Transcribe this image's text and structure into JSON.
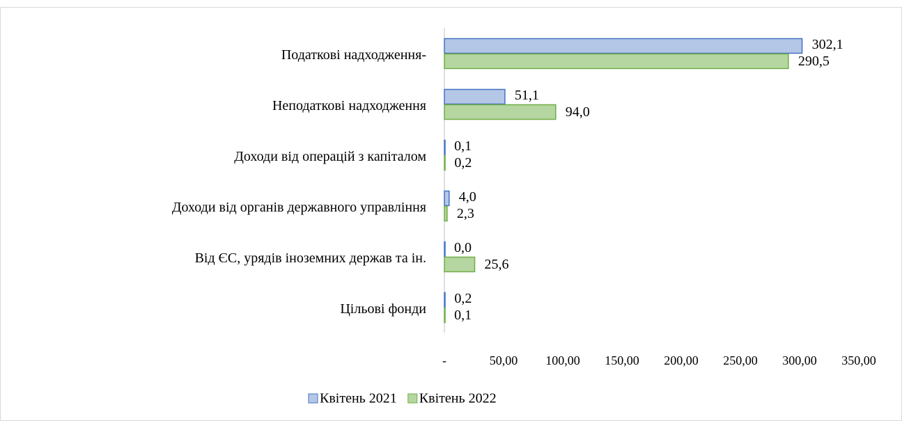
{
  "chart_data": {
    "type": "hbar",
    "categories": [
      "Податкові надходження-",
      "Неподаткові надходження",
      "Доходи від операцій з капіталом",
      "Доходи від органів державного управління",
      "Від ЄС, урядів іноземних держав та ін.",
      "Цільові фонди"
    ],
    "series": [
      {
        "name": "Квітень 2021",
        "color": "#4472c4",
        "fill": "#b4c7e7",
        "values": [
          302.1,
          51.1,
          0.1,
          4.0,
          0.0,
          0.2
        ],
        "value_labels": [
          "302,1",
          "51,1",
          "0,1",
          "4,0",
          "0,0",
          "0,2"
        ]
      },
      {
        "name": "Квітень 2022",
        "color": "#70ad47",
        "fill": "#b5d6a0",
        "values": [
          290.5,
          94.0,
          0.2,
          2.3,
          25.6,
          0.1
        ],
        "value_labels": [
          "290,5",
          "94,0",
          "0,2",
          "2,3",
          "25,6",
          "0,1"
        ]
      }
    ],
    "xlim": [
      0,
      350
    ],
    "xticks": [
      {
        "value": 0,
        "label": "-"
      },
      {
        "value": 50,
        "label": "50,00"
      },
      {
        "value": 100,
        "label": "100,00"
      },
      {
        "value": 150,
        "label": "150,00"
      },
      {
        "value": 200,
        "label": "200,00"
      },
      {
        "value": 250,
        "label": "250,00"
      },
      {
        "value": 300,
        "label": "300,00"
      },
      {
        "value": 350,
        "label": "350,00"
      }
    ],
    "legend": "bottom"
  }
}
